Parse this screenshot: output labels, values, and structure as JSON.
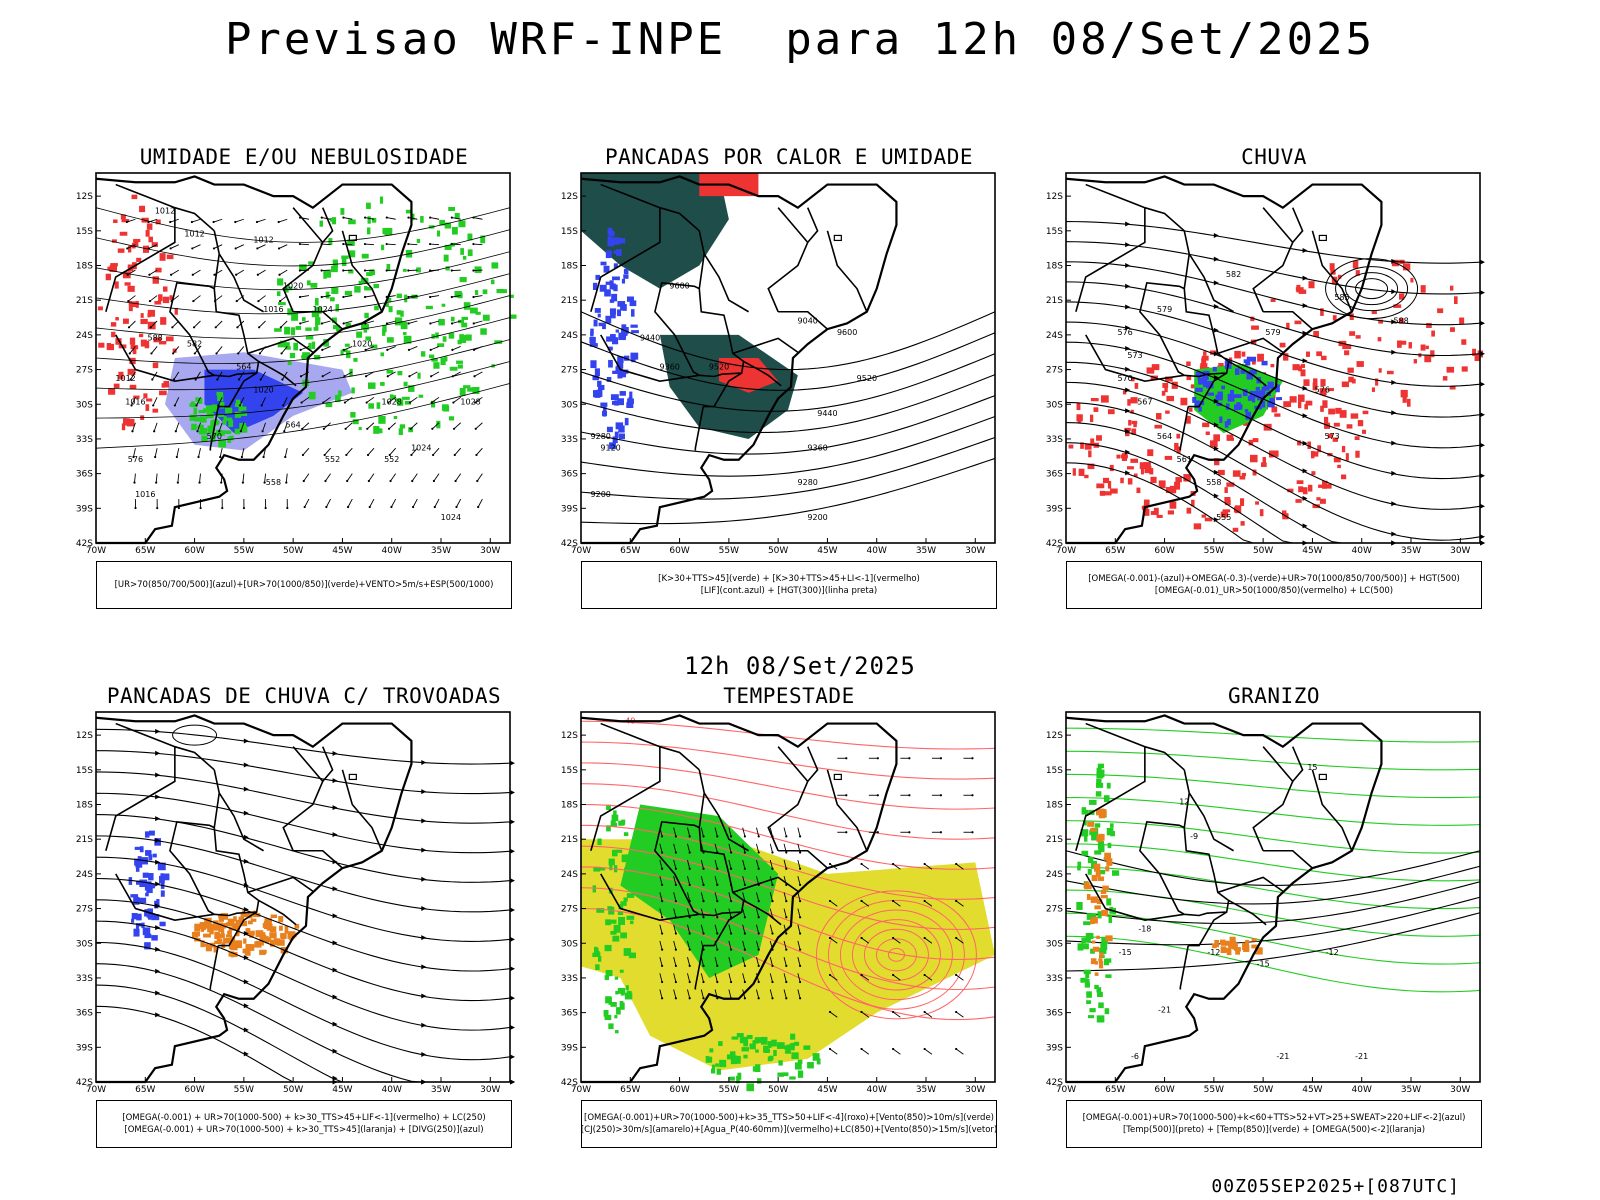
{
  "title": "Previsao WRF-INPE  para 12h 08/Set/2025",
  "mid_title": "12h 08/Set/2025",
  "footer": "00Z05SEP2025+[087UTC]",
  "lat_ticks": [
    "12S",
    "15S",
    "18S",
    "21S",
    "24S",
    "27S",
    "30S",
    "33S",
    "36S",
    "39S",
    "42S"
  ],
  "lon_ticks": [
    "70W",
    "65W",
    "60W",
    "55W",
    "50W",
    "45W",
    "40W",
    "35W",
    "30W"
  ],
  "colors": {
    "blue": "#3344ee",
    "lavender": "#a8a8f0",
    "green": "#22cc22",
    "darkgreen": "#1f4d4a",
    "red": "#ee3333",
    "orange": "#e8801e",
    "yellow": "#e2dc2e",
    "ltred": "#ff6666"
  },
  "panels": [
    {
      "id": "umidade",
      "title": "UMIDADE E/OU NEBULOSIDADE",
      "legend": [
        "[UR>70(850/700/500)](azul)+[UR>70(1000/850)](verde)+VENTO>5m/s+ESP(500/1000)"
      ],
      "contour_labels": [
        "1012",
        "1012",
        "1012",
        "1016",
        "1020",
        "1024",
        "1020",
        "1028",
        "1028",
        "1024",
        "1016",
        "1024",
        "1012",
        "1016",
        "1020",
        "570",
        "588",
        "564",
        "564",
        "582",
        "552",
        "558",
        "552",
        "576"
      ]
    },
    {
      "id": "pancadas-calor",
      "title": "PANCADAS POR CALOR E UMIDADE",
      "legend": [
        "[K>30+TTS>45](verde) + [K>30+TTS>45+LI<-1](vermelho)",
        "[LIF](cont.azul) + [HGT(300)](linha preta)"
      ],
      "contour_labels": [
        "9600",
        "9520",
        "9440",
        "9360",
        "9280",
        "9200",
        "9120",
        "9040",
        "9600",
        "9520",
        "9440",
        "9360",
        "9280",
        "9200"
      ]
    },
    {
      "id": "chuva",
      "title": "CHUVA",
      "legend": [
        "[OMEGA(-0.001)-(azul)+OMEGA(-0.3)-(verde)+UR>70(1000/850/700/500)] + HGT(500)",
        "[OMEGA(-0.01)_UR>50(1000/850)(vermelho) + LC(500)"
      ],
      "contour_labels": [
        "588",
        "585",
        "582",
        "579",
        "576",
        "573",
        "570",
        "567",
        "564",
        "561",
        "558",
        "555",
        "576",
        "579",
        "573"
      ]
    },
    {
      "id": "pancadas-trovoadas",
      "title": "PANCADAS DE CHUVA C/ TROVOADAS",
      "legend": [
        "[OMEGA(-0.001) + UR>70(1000-500) + k>30_TTS>45+LIF<-1](vermelho) + LC(250)",
        "[OMEGA(-0.001) + UR>70(1000-500) + k>30_TTS>45](laranja) + [DIVG(250)](azul)"
      ],
      "contour_labels": []
    },
    {
      "id": "tempestade",
      "title": "TEMPESTADE",
      "legend": [
        "[OMEGA(-0.001)+UR>70(1000-500)+k>35_TTS>50+LIF<-4](roxo)+[Vento(850)>10m/s](verde)",
        "[CJ(250)>30m/s](amarelo)+[Agua_P(40-60mm)](vermelho)+LC(850)+[Vento(850)>15m/s](vetor)"
      ],
      "contour_labels": [
        "40"
      ]
    },
    {
      "id": "granizo",
      "title": "GRANIZO",
      "legend": [
        "[OMEGA(-0.001)+UR>70(1000-500)+k<60+TTS>52+VT>25+SWEAT>220+LIF<-2](azul)",
        "[Temp(500)](preto) + [Temp(850)](verde) + [OMEGA(500)<-2](laranja)"
      ],
      "contour_labels": [
        "-21",
        "-21",
        "-15",
        "-12",
        "-12",
        "-9",
        "-18",
        "-15",
        "12",
        "15",
        "-21",
        "-6"
      ]
    }
  ]
}
